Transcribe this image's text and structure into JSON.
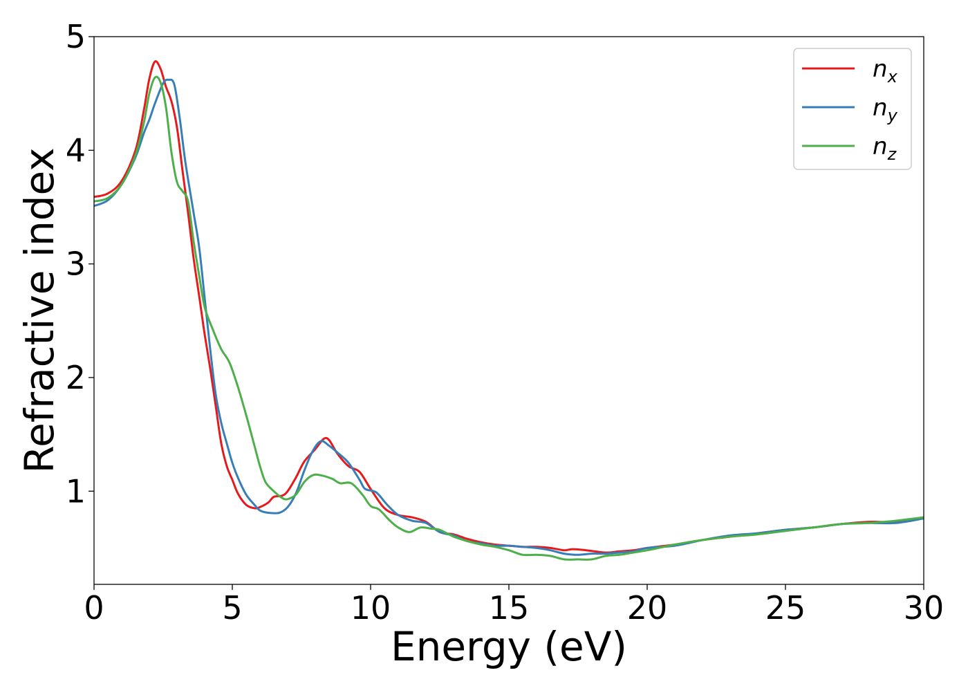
{
  "chart_data": {
    "type": "line",
    "title": "",
    "xlabel": "Energy (eV)",
    "ylabel": "Refractive index",
    "xlim": [
      0,
      30
    ],
    "ylim": [
      0.18,
      5
    ],
    "xticks": [
      "0",
      "5",
      "10",
      "15",
      "20",
      "25",
      "30"
    ],
    "yticks": [
      "1",
      "2",
      "3",
      "4",
      "5"
    ],
    "grid": false,
    "legend_position": "top-right",
    "series": [
      {
        "name": "n_x",
        "label_base": "n",
        "label_sub": "x",
        "color": "#e41a1c",
        "points": [
          [
            0,
            3.59
          ],
          [
            0.5,
            3.62
          ],
          [
            1.0,
            3.73
          ],
          [
            1.5,
            4.0
          ],
          [
            1.8,
            4.35
          ],
          [
            2.0,
            4.63
          ],
          [
            2.2,
            4.78
          ],
          [
            2.4,
            4.72
          ],
          [
            2.6,
            4.56
          ],
          [
            2.8,
            4.43
          ],
          [
            3.0,
            4.2
          ],
          [
            3.2,
            3.82
          ],
          [
            3.4,
            3.45
          ],
          [
            3.6,
            3.05
          ],
          [
            3.8,
            2.72
          ],
          [
            4.0,
            2.38
          ],
          [
            4.2,
            2.08
          ],
          [
            4.4,
            1.75
          ],
          [
            4.6,
            1.42
          ],
          [
            4.8,
            1.22
          ],
          [
            5.0,
            1.1
          ],
          [
            5.2,
            0.98
          ],
          [
            5.5,
            0.88
          ],
          [
            5.8,
            0.85
          ],
          [
            6.0,
            0.86
          ],
          [
            6.3,
            0.9
          ],
          [
            6.5,
            0.95
          ],
          [
            6.8,
            0.96
          ],
          [
            7.0,
            1.0
          ],
          [
            7.3,
            1.12
          ],
          [
            7.6,
            1.26
          ],
          [
            8.0,
            1.37
          ],
          [
            8.3,
            1.46
          ],
          [
            8.5,
            1.45
          ],
          [
            8.8,
            1.33
          ],
          [
            9.2,
            1.22
          ],
          [
            9.6,
            1.17
          ],
          [
            10.0,
            1.02
          ],
          [
            10.5,
            0.85
          ],
          [
            11.0,
            0.79
          ],
          [
            11.5,
            0.77
          ],
          [
            12.0,
            0.73
          ],
          [
            12.5,
            0.64
          ],
          [
            13.0,
            0.62
          ],
          [
            13.5,
            0.58
          ],
          [
            14.0,
            0.55
          ],
          [
            14.5,
            0.53
          ],
          [
            15.0,
            0.52
          ],
          [
            15.5,
            0.51
          ],
          [
            16.0,
            0.51
          ],
          [
            16.5,
            0.5
          ],
          [
            17.0,
            0.48
          ],
          [
            17.3,
            0.49
          ],
          [
            17.8,
            0.48
          ],
          [
            18.5,
            0.46
          ],
          [
            19.0,
            0.47
          ],
          [
            19.5,
            0.48
          ],
          [
            20.0,
            0.5
          ],
          [
            21.0,
            0.53
          ],
          [
            22.0,
            0.57
          ],
          [
            23.0,
            0.6
          ],
          [
            24.0,
            0.63
          ],
          [
            25.0,
            0.66
          ],
          [
            26.0,
            0.68
          ],
          [
            27.0,
            0.71
          ],
          [
            28.0,
            0.73
          ],
          [
            29.0,
            0.73
          ],
          [
            30.0,
            0.77
          ]
        ]
      },
      {
        "name": "n_y",
        "label_base": "n",
        "label_sub": "y",
        "color": "#377eb8",
        "points": [
          [
            0,
            3.51
          ],
          [
            0.5,
            3.56
          ],
          [
            1.0,
            3.7
          ],
          [
            1.5,
            3.94
          ],
          [
            1.8,
            4.15
          ],
          [
            2.0,
            4.27
          ],
          [
            2.2,
            4.41
          ],
          [
            2.5,
            4.59
          ],
          [
            2.7,
            4.62
          ],
          [
            2.9,
            4.58
          ],
          [
            3.1,
            4.28
          ],
          [
            3.3,
            3.9
          ],
          [
            3.6,
            3.45
          ],
          [
            3.8,
            3.15
          ],
          [
            4.0,
            2.7
          ],
          [
            4.2,
            2.25
          ],
          [
            4.4,
            1.85
          ],
          [
            4.6,
            1.6
          ],
          [
            4.8,
            1.42
          ],
          [
            5.0,
            1.25
          ],
          [
            5.2,
            1.12
          ],
          [
            5.5,
            0.97
          ],
          [
            5.8,
            0.88
          ],
          [
            6.0,
            0.83
          ],
          [
            6.3,
            0.81
          ],
          [
            6.7,
            0.81
          ],
          [
            7.0,
            0.86
          ],
          [
            7.3,
            0.98
          ],
          [
            7.6,
            1.18
          ],
          [
            7.9,
            1.35
          ],
          [
            8.2,
            1.44
          ],
          [
            8.5,
            1.4
          ],
          [
            8.8,
            1.34
          ],
          [
            9.2,
            1.25
          ],
          [
            9.6,
            1.1
          ],
          [
            9.8,
            1.02
          ],
          [
            10.2,
            0.99
          ],
          [
            10.6,
            0.88
          ],
          [
            11.0,
            0.79
          ],
          [
            11.5,
            0.74
          ],
          [
            12.0,
            0.72
          ],
          [
            12.5,
            0.64
          ],
          [
            13.0,
            0.61
          ],
          [
            13.5,
            0.56
          ],
          [
            14.0,
            0.54
          ],
          [
            14.5,
            0.52
          ],
          [
            15.0,
            0.52
          ],
          [
            15.5,
            0.51
          ],
          [
            16.0,
            0.5
          ],
          [
            16.5,
            0.48
          ],
          [
            17.0,
            0.45
          ],
          [
            17.5,
            0.44
          ],
          [
            18.0,
            0.45
          ],
          [
            18.5,
            0.45
          ],
          [
            19.0,
            0.46
          ],
          [
            19.5,
            0.47
          ],
          [
            20.0,
            0.5
          ],
          [
            21.0,
            0.52
          ],
          [
            22.0,
            0.57
          ],
          [
            23.0,
            0.61
          ],
          [
            24.0,
            0.63
          ],
          [
            25.0,
            0.66
          ],
          [
            26.0,
            0.68
          ],
          [
            27.0,
            0.71
          ],
          [
            28.0,
            0.72
          ],
          [
            29.0,
            0.72
          ],
          [
            30.0,
            0.76
          ]
        ]
      },
      {
        "name": "n_z",
        "label_base": "n",
        "label_sub": "z",
        "color": "#4daf4a",
        "points": [
          [
            0,
            3.55
          ],
          [
            0.5,
            3.58
          ],
          [
            1.0,
            3.7
          ],
          [
            1.5,
            3.96
          ],
          [
            1.8,
            4.24
          ],
          [
            2.0,
            4.5
          ],
          [
            2.2,
            4.64
          ],
          [
            2.4,
            4.6
          ],
          [
            2.6,
            4.38
          ],
          [
            2.8,
            3.98
          ],
          [
            3.0,
            3.72
          ],
          [
            3.2,
            3.64
          ],
          [
            3.4,
            3.55
          ],
          [
            3.6,
            3.2
          ],
          [
            3.8,
            2.9
          ],
          [
            4.0,
            2.62
          ],
          [
            4.3,
            2.42
          ],
          [
            4.6,
            2.25
          ],
          [
            4.9,
            2.13
          ],
          [
            5.2,
            1.92
          ],
          [
            5.5,
            1.67
          ],
          [
            5.8,
            1.4
          ],
          [
            6.0,
            1.22
          ],
          [
            6.2,
            1.08
          ],
          [
            6.5,
            1.0
          ],
          [
            6.8,
            0.94
          ],
          [
            7.0,
            0.93
          ],
          [
            7.3,
            0.97
          ],
          [
            7.6,
            1.08
          ],
          [
            7.9,
            1.14
          ],
          [
            8.2,
            1.14
          ],
          [
            8.6,
            1.11
          ],
          [
            8.9,
            1.07
          ],
          [
            9.3,
            1.07
          ],
          [
            9.7,
            0.97
          ],
          [
            10.0,
            0.87
          ],
          [
            10.3,
            0.84
          ],
          [
            10.7,
            0.74
          ],
          [
            11.0,
            0.68
          ],
          [
            11.4,
            0.64
          ],
          [
            11.8,
            0.68
          ],
          [
            12.2,
            0.67
          ],
          [
            12.5,
            0.66
          ],
          [
            13.0,
            0.6
          ],
          [
            13.5,
            0.56
          ],
          [
            14.0,
            0.53
          ],
          [
            14.5,
            0.51
          ],
          [
            15.0,
            0.48
          ],
          [
            15.5,
            0.44
          ],
          [
            16.0,
            0.44
          ],
          [
            16.5,
            0.43
          ],
          [
            17.0,
            0.4
          ],
          [
            17.5,
            0.4
          ],
          [
            18.0,
            0.4
          ],
          [
            18.5,
            0.43
          ],
          [
            19.0,
            0.44
          ],
          [
            19.5,
            0.46
          ],
          [
            20.0,
            0.48
          ],
          [
            21.0,
            0.53
          ],
          [
            22.0,
            0.57
          ],
          [
            23.0,
            0.6
          ],
          [
            24.0,
            0.62
          ],
          [
            25.0,
            0.65
          ],
          [
            26.0,
            0.68
          ],
          [
            27.0,
            0.71
          ],
          [
            28.0,
            0.72
          ],
          [
            29.0,
            0.74
          ],
          [
            30.0,
            0.77
          ]
        ]
      }
    ]
  }
}
